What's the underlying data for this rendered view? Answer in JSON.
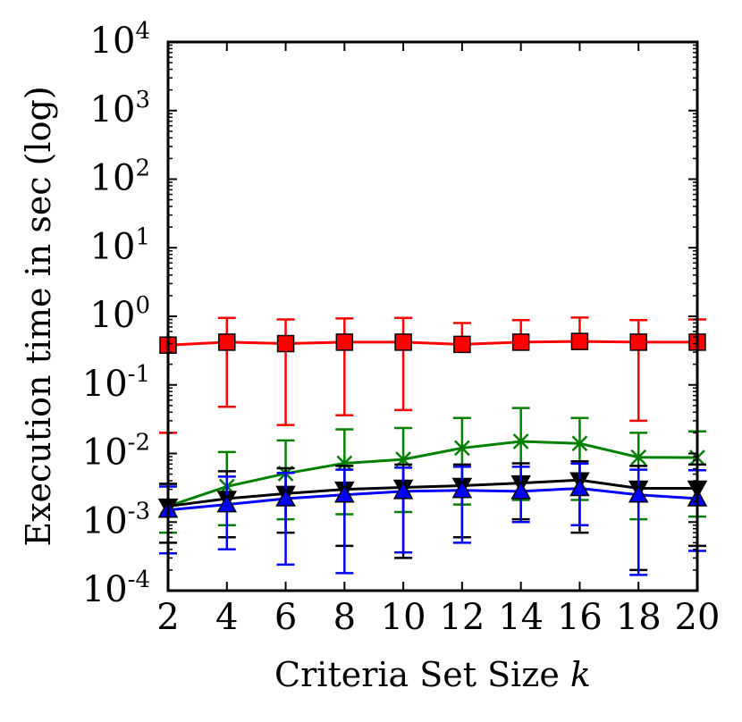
{
  "chart_data": {
    "type": "line",
    "xlabel": "Criteria Set Size",
    "xlabel_var": "k",
    "ylabel": "Execution time in sec (log)",
    "yscale": "log",
    "xlim": [
      2,
      20
    ],
    "ylim": [
      0.0001,
      10000
    ],
    "grid": false,
    "x": [
      2,
      4,
      6,
      8,
      10,
      12,
      14,
      16,
      18,
      20
    ],
    "x_tick_labels": [
      "2",
      "4",
      "6",
      "8",
      "10",
      "12",
      "14",
      "16",
      "18",
      "20"
    ],
    "y_ticks": [
      {
        "base": "10",
        "exp": "-4",
        "value": 0.0001
      },
      {
        "base": "10",
        "exp": "-3",
        "value": 0.001
      },
      {
        "base": "10",
        "exp": "-2",
        "value": 0.01
      },
      {
        "base": "10",
        "exp": "-1",
        "value": 0.1
      },
      {
        "base": "10",
        "exp": "0",
        "value": 1
      },
      {
        "base": "10",
        "exp": "1",
        "value": 10
      },
      {
        "base": "10",
        "exp": "2",
        "value": 100
      },
      {
        "base": "10",
        "exp": "3",
        "value": 1000
      },
      {
        "base": "10",
        "exp": "4",
        "value": 10000
      }
    ],
    "series": [
      {
        "name": "square",
        "color": "#ff0000",
        "marker": "square",
        "values": [
          0.38,
          0.42,
          0.4,
          0.42,
          0.42,
          0.39,
          0.42,
          0.43,
          0.42,
          0.42
        ],
        "err_high": [
          0.0,
          0.95,
          0.9,
          0.93,
          0.95,
          0.8,
          0.88,
          0.96,
          0.88,
          0.9
        ],
        "err_low": [
          0.02,
          0.048,
          0.026,
          0.036,
          0.043,
          0.0,
          0.0,
          0.0,
          0.03,
          0.0
        ]
      },
      {
        "name": "cross",
        "color": "#008000",
        "marker": "x",
        "values": [
          0.0017,
          0.0033,
          0.0051,
          0.0072,
          0.0082,
          0.012,
          0.015,
          0.014,
          0.0088,
          0.0087
        ],
        "err_high": [
          0.0036,
          0.0105,
          0.0155,
          0.0225,
          0.0235,
          0.033,
          0.046,
          0.033,
          0.02,
          0.021
        ],
        "err_low": [
          0.0007,
          0.0009,
          0.0011,
          0.0013,
          0.0014,
          0.0018,
          0.0021,
          0.0021,
          0.0011,
          0.0012
        ]
      },
      {
        "name": "down-triangle",
        "color": "#000000",
        "marker": "triangle-down",
        "values": [
          0.0017,
          0.0022,
          0.0026,
          0.003,
          0.0032,
          0.0034,
          0.0037,
          0.0041,
          0.0031,
          0.0031
        ],
        "err_high": [
          0.0036,
          0.0055,
          0.0061,
          0.0066,
          0.0069,
          0.0069,
          0.0072,
          0.0077,
          0.0066,
          0.0069
        ],
        "err_low": [
          0.0005,
          0.0006,
          0.0007,
          0.00045,
          0.0003,
          0.0006,
          0.0011,
          0.0007,
          0.0002,
          0.00045
        ]
      },
      {
        "name": "up-triangle",
        "color": "#0000ff",
        "marker": "triangle-up",
        "values": [
          0.0015,
          0.0018,
          0.0022,
          0.0025,
          0.0028,
          0.0029,
          0.0028,
          0.0031,
          0.0025,
          0.0022
        ],
        "err_high": [
          0.0033,
          0.0046,
          0.0052,
          0.0058,
          0.0062,
          0.0064,
          0.0064,
          0.0071,
          0.0058,
          0.0057
        ],
        "err_low": [
          0.00035,
          0.0004,
          0.00024,
          0.00018,
          0.00036,
          0.0005,
          0.001,
          0.0009,
          0.00017,
          0.00038
        ]
      }
    ]
  }
}
